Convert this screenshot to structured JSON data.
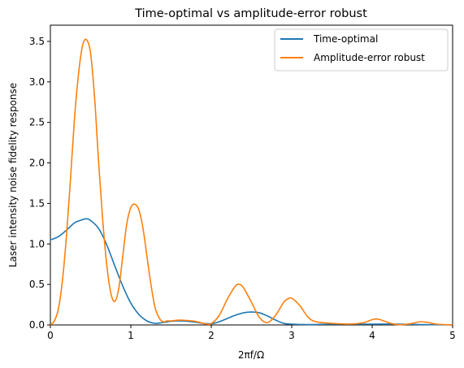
{
  "chart_data": {
    "type": "line",
    "title": "Time-optimal vs amplitude-error robust",
    "xlabel": "2πf/Ω",
    "ylabel": "Laser intensity noise fidelity response",
    "xlim": [
      0,
      5
    ],
    "ylim": [
      0,
      3.7
    ],
    "x_ticks": [
      "0",
      "1",
      "2",
      "3",
      "4",
      "5"
    ],
    "y_ticks": [
      "0.0",
      "0.5",
      "1.0",
      "1.5",
      "2.0",
      "2.5",
      "3.0",
      "3.5"
    ],
    "grid": false,
    "legend_position": "top-right",
    "series": [
      {
        "name": "Time-optimal",
        "color": "#1f77b4",
        "x": [
          0,
          0.1,
          0.2,
          0.3,
          0.4,
          0.45,
          0.5,
          0.6,
          0.7,
          0.8,
          0.9,
          1.0,
          1.1,
          1.2,
          1.3,
          1.4,
          1.5,
          1.6,
          1.7,
          1.8,
          1.9,
          2.0,
          2.1,
          2.2,
          2.3,
          2.4,
          2.5,
          2.6,
          2.7,
          2.8,
          2.9,
          3.0,
          3.2,
          3.5,
          3.8,
          4.0,
          4.3,
          4.6,
          5.0
        ],
        "y": [
          1.05,
          1.09,
          1.17,
          1.26,
          1.3,
          1.31,
          1.29,
          1.19,
          0.99,
          0.73,
          0.48,
          0.27,
          0.13,
          0.05,
          0.02,
          0.03,
          0.045,
          0.05,
          0.045,
          0.035,
          0.02,
          0.015,
          0.04,
          0.08,
          0.12,
          0.15,
          0.16,
          0.15,
          0.11,
          0.06,
          0.02,
          0.01,
          0.005,
          0.01,
          0.01,
          0.01,
          0.01,
          0.005,
          0.0
        ]
      },
      {
        "name": "Amplitude-error robust",
        "color": "#ff7f0e",
        "x": [
          0,
          0.05,
          0.1,
          0.15,
          0.2,
          0.25,
          0.3,
          0.35,
          0.4,
          0.45,
          0.5,
          0.55,
          0.6,
          0.65,
          0.7,
          0.75,
          0.8,
          0.85,
          0.9,
          0.95,
          1.0,
          1.05,
          1.1,
          1.15,
          1.2,
          1.25,
          1.3,
          1.35,
          1.4,
          1.45,
          1.5,
          1.6,
          1.7,
          1.8,
          1.9,
          1.95,
          2.0,
          2.1,
          2.2,
          2.3,
          2.35,
          2.4,
          2.5,
          2.6,
          2.7,
          2.8,
          2.9,
          2.95,
          3.0,
          3.1,
          3.2,
          3.3,
          3.5,
          3.7,
          3.8,
          3.9,
          4.0,
          4.05,
          4.1,
          4.2,
          4.3,
          4.4,
          4.5,
          4.6,
          4.7,
          4.8,
          5.0
        ],
        "y": [
          0.0,
          0.05,
          0.2,
          0.55,
          1.1,
          1.8,
          2.55,
          3.1,
          3.45,
          3.52,
          3.35,
          2.8,
          2.0,
          1.3,
          0.75,
          0.4,
          0.29,
          0.45,
          0.85,
          1.25,
          1.45,
          1.49,
          1.42,
          1.2,
          0.85,
          0.5,
          0.22,
          0.09,
          0.04,
          0.05,
          0.05,
          0.06,
          0.055,
          0.045,
          0.02,
          0.01,
          0.015,
          0.12,
          0.32,
          0.48,
          0.5,
          0.46,
          0.28,
          0.09,
          0.03,
          0.12,
          0.28,
          0.32,
          0.33,
          0.24,
          0.1,
          0.04,
          0.02,
          0.01,
          0.015,
          0.03,
          0.065,
          0.075,
          0.065,
          0.03,
          0.005,
          0.005,
          0.02,
          0.04,
          0.03,
          0.01,
          0.0
        ]
      }
    ]
  }
}
